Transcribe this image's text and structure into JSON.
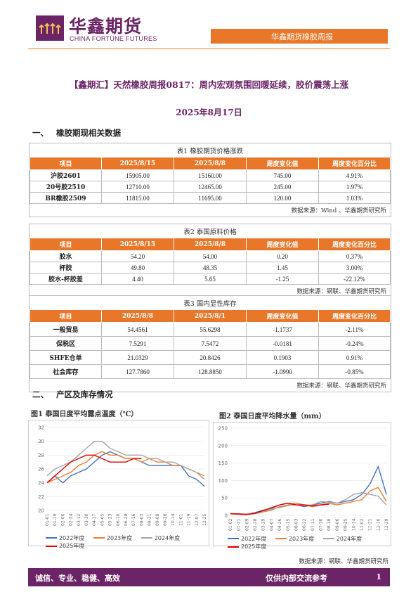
{
  "header": {
    "brand_cn": "华鑫期货",
    "brand_en": "CHINA FORTUNE FUTURES",
    "report_label": "华鑫期货橡胶周报",
    "accent": "#e9772a",
    "brand_color": "#6b2466"
  },
  "title": "【鑫期汇】天然橡胶周报0817：周内宏观氛围回暖延续，胶价震荡上涨",
  "date": "2025年8月17日",
  "section1": {
    "num": "一、",
    "label": "橡胶期现相关数据"
  },
  "table1": {
    "caption": "表1 橡胶期货价格涨跌",
    "headers": [
      "项目",
      "2025/8/15",
      "2025/8/8",
      "周度变化值",
      "周度变化百分比"
    ],
    "rows": [
      [
        "沪胶2601",
        "15905.00",
        "15160.00",
        "745.00",
        "4.91%"
      ],
      [
        "20号胶2510",
        "12710.00",
        "12465.00",
        "245.00",
        "1.97%"
      ],
      [
        "BR橡胶2509",
        "11815.00",
        "11695.00",
        "120.00",
        "1.03%"
      ]
    ],
    "source": "数据来源：Wind 、华鑫期货研究所"
  },
  "table2": {
    "caption": "表2 泰国原料价格",
    "headers": [
      "项目",
      "2025/8/15",
      "2025/8/8",
      "周度变化值",
      "周度变化百分比"
    ],
    "rows": [
      [
        "胶水",
        "54.20",
        "54.00",
        "0.20",
        "0.37%"
      ],
      [
        "杯胶",
        "49.80",
        "48.35",
        "1.45",
        "3.00%"
      ],
      [
        "胶水-杯胶差",
        "4.40",
        "5.65",
        "-1.25",
        "-22.12%"
      ]
    ],
    "source": "数据来源：钢联、华鑫期货研究所"
  },
  "table3": {
    "caption": "表3 国内显性库存",
    "headers": [
      "项目",
      "2025/8/8",
      "2025/8/1",
      "周度变化值",
      "周度变化百分比"
    ],
    "rows": [
      [
        "一般贸易",
        "54.4561",
        "55.6298",
        "-1.1737",
        "-2.11%"
      ],
      [
        "保税区",
        "7.5291",
        "7.5472",
        "-0.0181",
        "-0.24%"
      ],
      [
        "SHFE仓单",
        "21.0329",
        "20.8426",
        "0.1903",
        "0.91%"
      ],
      [
        "社会库存",
        "127.7860",
        "128.8850",
        "-1.0990",
        "-0.85%"
      ]
    ],
    "source": "数据来源：钢联、华鑫期货研究所"
  },
  "section2": {
    "num": "二、",
    "label": "产区及库存情况"
  },
  "chart_data": [
    {
      "type": "line",
      "title": "图1 泰国日度平均露点温度（℃）",
      "ylim": [
        20,
        32
      ],
      "yticks": [
        20,
        22,
        24,
        26,
        28,
        30,
        32
      ],
      "xticks": [
        "01-01",
        "01-19",
        "02-06",
        "02-24",
        "03-12",
        "03-30",
        "04-17",
        "05-05",
        "05-23",
        "06-10",
        "06-28",
        "07-16",
        "08-03",
        "08-21",
        "09-08",
        "09-26",
        "10-14",
        "11-01",
        "11-19",
        "12-07",
        "12-25"
      ],
      "series": [
        {
          "name": "2022年度",
          "color": "#4472c4",
          "values": [
            24,
            25,
            24,
            25,
            25.5,
            26,
            27,
            28,
            28.5,
            28,
            27.5,
            27.5,
            27,
            26.5,
            26.5,
            26.5,
            26.5,
            26.5,
            25,
            24.5,
            23.5
          ]
        },
        {
          "name": "2023年度",
          "color": "#ed7d31",
          "values": [
            24,
            24.5,
            25,
            25.5,
            26.5,
            27,
            28,
            28.5,
            28,
            28,
            27.5,
            27.5,
            27,
            27.5,
            27,
            27,
            26.5,
            26.5,
            26,
            25.5,
            25
          ]
        },
        {
          "name": "2024年度",
          "color": "#a5a5a5",
          "values": [
            25,
            26,
            26.5,
            27,
            28,
            29,
            30,
            30,
            29,
            28.5,
            28,
            28,
            28,
            27.5,
            27.5,
            27,
            27,
            26.5,
            26,
            25.5,
            24.5
          ]
        },
        {
          "name": "2025年度",
          "color": "#e00000",
          "values": [
            24,
            25,
            26,
            27,
            27.5,
            28,
            28,
            27.5,
            27,
            27,
            27,
            27.5,
            27.5
          ]
        }
      ]
    },
    {
      "type": "line",
      "title": "图2 泰国日度平均降水量（mm）",
      "ylim": [
        0,
        250
      ],
      "yticks": [
        0,
        50,
        100,
        150,
        200,
        250
      ],
      "xticks": [
        "01-02",
        "01-21",
        "02-09",
        "02-28",
        "03-19",
        "04-07",
        "04-26",
        "05-15",
        "06-03",
        "06-22",
        "07-11",
        "07-30",
        "08-18",
        "09-06",
        "09-25",
        "10-14",
        "11-02",
        "11-21",
        "12-10",
        "12-29"
      ],
      "series": [
        {
          "name": "2022年度",
          "color": "#4472c4",
          "values": [
            5,
            5,
            3,
            8,
            15,
            20,
            30,
            35,
            30,
            25,
            30,
            35,
            40,
            35,
            40,
            45,
            60,
            90,
            140,
            60
          ]
        },
        {
          "name": "2023年度",
          "color": "#ed7d31",
          "values": [
            4,
            3,
            2,
            5,
            10,
            15,
            25,
            30,
            35,
            30,
            25,
            30,
            35,
            30,
            35,
            40,
            45,
            70,
            80,
            40
          ]
        },
        {
          "name": "2024年度",
          "color": "#a5a5a5",
          "values": [
            6,
            4,
            4,
            6,
            12,
            18,
            22,
            28,
            30,
            28,
            30,
            40,
            38,
            35,
            45,
            60,
            65,
            60,
            55,
            30
          ]
        },
        {
          "name": "2025年度",
          "color": "#e00000",
          "values": [
            5,
            4,
            3,
            6,
            14,
            22,
            30,
            35,
            30,
            30,
            28,
            30,
            32
          ]
        }
      ]
    }
  ],
  "chart_footer_source": "数据来源：钢联、华鑫期货研究所",
  "footer": {
    "left": "诚信、专业、稳健、高效",
    "center": "仅供内部交流参考",
    "page": "1"
  }
}
